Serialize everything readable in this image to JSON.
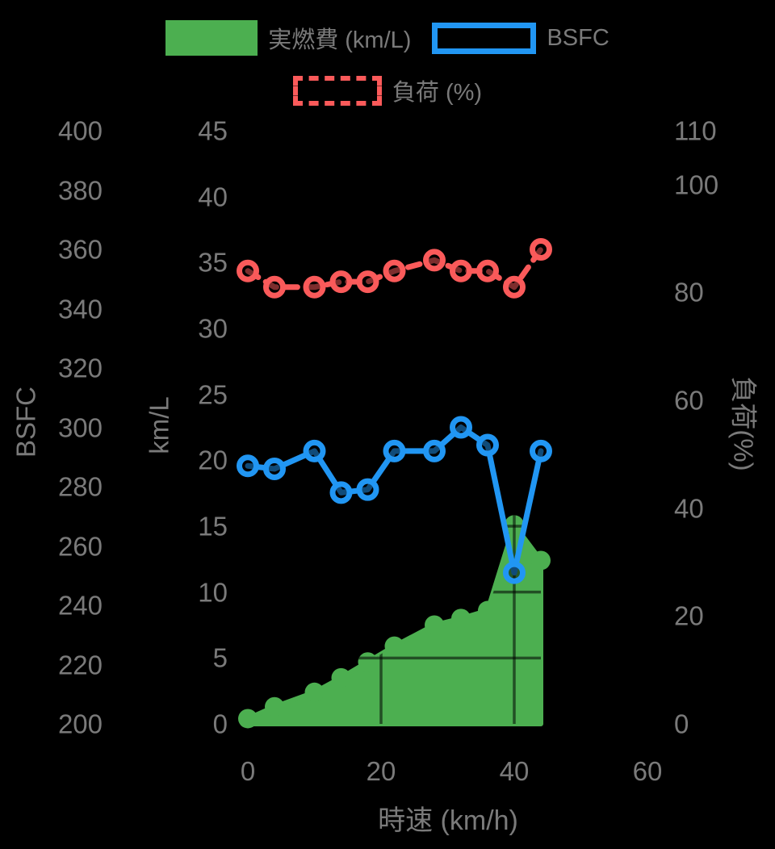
{
  "legend": {
    "items": [
      {
        "id": "fuel",
        "label": "実燃費 (km/L)",
        "swatch": "filled",
        "color": "#4CAF50"
      },
      {
        "id": "bsfc",
        "label": "BSFC",
        "swatch": "outline",
        "color": "#2196F3"
      },
      {
        "id": "load",
        "label": "負荷 (%)",
        "swatch": "dashed",
        "color": "#FA5A5A"
      }
    ]
  },
  "axes": {
    "bsfc": {
      "title": "BSFC",
      "side": "far-left",
      "ticks": [
        400,
        380,
        360,
        340,
        320,
        300,
        280,
        260,
        240,
        220,
        200
      ],
      "range": [
        200,
        400
      ]
    },
    "kml": {
      "title": "km/L",
      "side": "left",
      "ticks": [
        45,
        40,
        35,
        30,
        25,
        20,
        15,
        10,
        5,
        0
      ],
      "range": [
        0,
        45
      ]
    },
    "load": {
      "title": "負荷(%)",
      "side": "right",
      "ticks": [
        110,
        100,
        80,
        60,
        40,
        20,
        0
      ],
      "range": [
        0,
        110
      ]
    },
    "x": {
      "title": "時速 (km/h)",
      "side": "bottom",
      "ticks": [
        0,
        20,
        40,
        60
      ],
      "range": [
        0,
        60
      ]
    }
  },
  "chart_data": {
    "type": "line",
    "title": "",
    "xlabel": "時速 (km/h)",
    "x_values": [
      0,
      4,
      10,
      14,
      18,
      22,
      28,
      32,
      36,
      40,
      44
    ],
    "series": [
      {
        "id": "fuel",
        "name": "実燃費 (km/L)",
        "style": "area",
        "axis": "kml",
        "color": "#4CAF50",
        "values": [
          0.4,
          1.3,
          2.4,
          3.5,
          4.7,
          5.9,
          7.5,
          8.0,
          8.6,
          15.1,
          12.4
        ]
      },
      {
        "id": "bsfc",
        "name": "BSFC",
        "style": "line",
        "axis": "bsfc",
        "color": "#2196F3",
        "values": [
          287,
          286,
          292,
          278,
          279,
          292,
          292,
          300,
          294,
          251,
          292
        ]
      },
      {
        "id": "load",
        "name": "負荷 (%)",
        "style": "dashed-line",
        "axis": "load",
        "color": "#FA5A5A",
        "values": [
          84,
          81,
          81,
          82,
          82,
          84,
          86,
          84,
          84,
          81,
          88
        ]
      }
    ],
    "grid": {
      "x": [
        20,
        40
      ],
      "kml": [
        5,
        10,
        15
      ]
    },
    "axis_ranges": {
      "bsfc": [
        200,
        400
      ],
      "kml": [
        0,
        45
      ],
      "load": [
        0,
        110
      ],
      "x": [
        0,
        60
      ]
    },
    "legend_position": "top",
    "background": "#000000",
    "text_color": "#7a7a7a"
  }
}
